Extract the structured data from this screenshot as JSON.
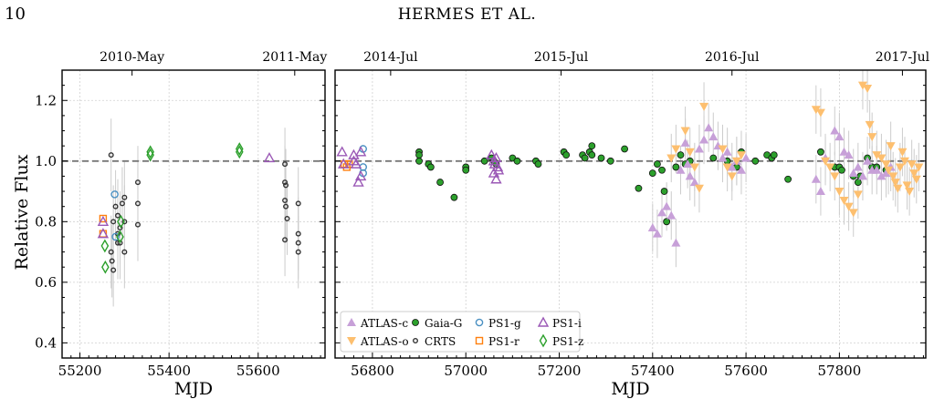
{
  "header": {
    "page_number": "10",
    "running_title": "HERMES ET AL."
  },
  "shared_ylabel": "Relative  Flux",
  "legend": [
    {
      "key": "atlas_c",
      "label": "ATLAS-c",
      "marker": "triangle-up-filled",
      "color": "#c7a0d8"
    },
    {
      "key": "atlas_o",
      "label": "ATLAS-o",
      "marker": "triangle-down-filled",
      "color": "#fdbf6f"
    },
    {
      "key": "gaia_g",
      "label": "Gaia-G",
      "marker": "circle-filled",
      "color": "#2ca02c"
    },
    {
      "key": "crts",
      "label": "CRTS",
      "marker": "circle-open",
      "color": "#333333"
    },
    {
      "key": "ps1_g",
      "label": "PS1-g",
      "marker": "circle-open",
      "color": "#4a90c2"
    },
    {
      "key": "ps1_r",
      "label": "PS1-r",
      "marker": "square-open",
      "color": "#ff7f0e"
    },
    {
      "key": "ps1_i",
      "label": "PS1-i",
      "marker": "triangle-up-open",
      "color": "#9b59b6"
    },
    {
      "key": "ps1_z",
      "label": "PS1-z",
      "marker": "diamond-open",
      "color": "#2ca02c"
    }
  ],
  "chart_data": [
    {
      "type": "scatter",
      "panel": "left",
      "xlabel": "MJD",
      "ylabel": "Relative  Flux",
      "xlim": [
        55160,
        55750
      ],
      "ylim": [
        0.35,
        1.3
      ],
      "xticks": [
        55200,
        55400,
        55600
      ],
      "yticks": [
        0.4,
        0.6,
        0.8,
        1.0,
        1.2
      ],
      "top_ticks": [
        {
          "x": 55317,
          "label": "2010-May"
        },
        {
          "x": 55682,
          "label": "2011-May"
        }
      ],
      "reference_line": 1.0,
      "grid": true,
      "series": [
        {
          "key": "crts",
          "points": [
            [
              55270,
              1.02
            ],
            [
              55275,
              0.8
            ],
            [
              55280,
              0.85
            ],
            [
              55285,
              0.82
            ],
            [
              55290,
              0.78
            ],
            [
              55295,
              0.86
            ],
            [
              55300,
              0.88
            ],
            [
              55300,
              0.8
            ],
            [
              55270,
              0.7
            ],
            [
              55272,
              0.67
            ],
            [
              55275,
              0.64
            ],
            [
              55285,
              0.76
            ],
            [
              55290,
              0.73
            ],
            [
              55330,
              0.93
            ],
            [
              55330,
              0.86
            ],
            [
              55330,
              0.79
            ],
            [
              55300,
              0.7
            ],
            [
              55285,
              0.73
            ],
            [
              55660,
              0.99
            ],
            [
              55660,
              0.93
            ],
            [
              55662,
              0.92
            ],
            [
              55660,
              0.87
            ],
            [
              55662,
              0.85
            ],
            [
              55665,
              0.81
            ],
            [
              55660,
              0.74
            ],
            [
              55690,
              0.86
            ],
            [
              55690,
              0.76
            ],
            [
              55690,
              0.73
            ],
            [
              55690,
              0.7
            ]
          ]
        },
        {
          "key": "ps1_g",
          "points": [
            [
              55278,
              0.89
            ],
            [
              55280,
              0.75
            ]
          ]
        },
        {
          "key": "ps1_r",
          "points": [
            [
              55252,
              0.81
            ],
            [
              55252,
              0.76
            ]
          ]
        },
        {
          "key": "ps1_i",
          "points": [
            [
              55252,
              0.8
            ],
            [
              55252,
              0.76
            ],
            [
              55625,
              1.01
            ]
          ]
        },
        {
          "key": "ps1_z",
          "points": [
            [
              55256,
              0.72
            ],
            [
              55257,
              0.65
            ],
            [
              55292,
              0.8
            ],
            [
              55290,
              0.75
            ],
            [
              55358,
              1.03
            ],
            [
              55358,
              1.02
            ],
            [
              55558,
              1.04
            ],
            [
              55558,
              1.03
            ]
          ]
        }
      ]
    },
    {
      "type": "scatter",
      "panel": "right",
      "xlabel": "MJD",
      "ylim": [
        0.35,
        1.3
      ],
      "xlim": [
        56720,
        57985
      ],
      "xticks": [
        56800,
        57000,
        57200,
        57400,
        57600,
        57800
      ],
      "yticks": [
        0.4,
        0.6,
        0.8,
        1.0,
        1.2
      ],
      "top_ticks": [
        {
          "x": 56839,
          "label": "2014-Jul"
        },
        {
          "x": 57204,
          "label": "2015-Jul"
        },
        {
          "x": 57570,
          "label": "2016-Jul"
        },
        {
          "x": 57935,
          "label": "2017-Jul"
        }
      ],
      "reference_line": 1.0,
      "grid": true,
      "legend_position": "lower-left",
      "series": [
        {
          "key": "gaia_g",
          "points": [
            [
              56900,
              1.03
            ],
            [
              56900,
              1.02
            ],
            [
              56900,
              1.0
            ],
            [
              56920,
              0.99
            ],
            [
              56925,
              0.98
            ],
            [
              56945,
              0.93
            ],
            [
              56975,
              0.88
            ],
            [
              57000,
              0.98
            ],
            [
              57000,
              0.97
            ],
            [
              57040,
              1.0
            ],
            [
              57055,
              1.01
            ],
            [
              57060,
              1.0
            ],
            [
              57065,
              0.99
            ],
            [
              57100,
              1.01
            ],
            [
              57110,
              1.0
            ],
            [
              57150,
              1.0
            ],
            [
              57155,
              0.99
            ],
            [
              57210,
              1.03
            ],
            [
              57215,
              1.02
            ],
            [
              57250,
              1.02
            ],
            [
              57255,
              1.01
            ],
            [
              57265,
              1.03
            ],
            [
              57270,
              1.05
            ],
            [
              57270,
              1.02
            ],
            [
              57290,
              1.01
            ],
            [
              57310,
              1.0
            ],
            [
              57340,
              1.04
            ],
            [
              57370,
              0.91
            ],
            [
              57400,
              0.96
            ],
            [
              57410,
              0.99
            ],
            [
              57420,
              0.97
            ],
            [
              57425,
              0.9
            ],
            [
              57430,
              0.8
            ],
            [
              57450,
              0.98
            ],
            [
              57460,
              1.02
            ],
            [
              57470,
              0.99
            ],
            [
              57480,
              1.0
            ],
            [
              57530,
              1.01
            ],
            [
              57560,
              1.0
            ],
            [
              57580,
              0.98
            ],
            [
              57590,
              1.03
            ],
            [
              57620,
              1.0
            ],
            [
              57645,
              1.02
            ],
            [
              57655,
              1.01
            ],
            [
              57660,
              1.02
            ],
            [
              57690,
              0.94
            ],
            [
              57760,
              1.03
            ],
            [
              57790,
              0.98
            ],
            [
              57800,
              0.98
            ],
            [
              57805,
              0.97
            ],
            [
              57830,
              0.95
            ],
            [
              57840,
              0.93
            ],
            [
              57845,
              0.95
            ],
            [
              57860,
              1.01
            ],
            [
              57870,
              0.98
            ],
            [
              57880,
              0.98
            ],
            [
              57900,
              0.97
            ]
          ]
        },
        {
          "key": "atlas_c",
          "points": [
            [
              57400,
              0.78
            ],
            [
              57410,
              0.76
            ],
            [
              57420,
              0.83
            ],
            [
              57430,
              0.85
            ],
            [
              57440,
              0.82
            ],
            [
              57450,
              0.73
            ],
            [
              57460,
              0.97
            ],
            [
              57470,
              1.06
            ],
            [
              57475,
              0.99
            ],
            [
              57480,
              0.95
            ],
            [
              57490,
              0.93
            ],
            [
              57500,
              1.04
            ],
            [
              57510,
              1.07
            ],
            [
              57520,
              1.11
            ],
            [
              57530,
              1.08
            ],
            [
              57540,
              1.05
            ],
            [
              57550,
              1.01
            ],
            [
              57560,
              1.03
            ],
            [
              57570,
              0.98
            ],
            [
              57580,
              1.0
            ],
            [
              57590,
              0.97
            ],
            [
              57600,
              1.01
            ],
            [
              57750,
              0.94
            ],
            [
              57760,
              0.9
            ],
            [
              57770,
              1.01
            ],
            [
              57790,
              1.1
            ],
            [
              57800,
              1.08
            ],
            [
              57810,
              1.03
            ],
            [
              57820,
              1.02
            ],
            [
              57830,
              0.96
            ],
            [
              57840,
              0.98
            ],
            [
              57850,
              0.95
            ],
            [
              57860,
              1.0
            ],
            [
              57870,
              0.97
            ],
            [
              57880,
              0.97
            ],
            [
              57890,
              0.95
            ],
            [
              57900,
              0.96
            ],
            [
              57910,
              0.98
            ]
          ]
        },
        {
          "key": "atlas_o",
          "points": [
            [
              57440,
              1.01
            ],
            [
              57450,
              1.04
            ],
            [
              57470,
              1.1
            ],
            [
              57480,
              1.03
            ],
            [
              57490,
              0.98
            ],
            [
              57500,
              0.91
            ],
            [
              57510,
              1.18
            ],
            [
              57550,
              1.04
            ],
            [
              57560,
              0.98
            ],
            [
              57570,
              0.95
            ],
            [
              57580,
              1.0
            ],
            [
              57590,
              1.02
            ],
            [
              57750,
              1.17
            ],
            [
              57760,
              1.16
            ],
            [
              57770,
              1.0
            ],
            [
              57780,
              0.98
            ],
            [
              57790,
              0.95
            ],
            [
              57800,
              0.9
            ],
            [
              57810,
              0.87
            ],
            [
              57820,
              0.85
            ],
            [
              57830,
              0.83
            ],
            [
              57840,
              0.89
            ],
            [
              57850,
              1.25
            ],
            [
              57860,
              1.24
            ],
            [
              57865,
              1.12
            ],
            [
              57870,
              1.08
            ],
            [
              57880,
              1.02
            ],
            [
              57890,
              1.01
            ],
            [
              57900,
              0.99
            ],
            [
              57905,
              0.97
            ],
            [
              57910,
              1.05
            ],
            [
              57915,
              0.95
            ],
            [
              57920,
              0.93
            ],
            [
              57925,
              0.91
            ],
            [
              57930,
              0.98
            ],
            [
              57935,
              1.03
            ],
            [
              57940,
              1.0
            ],
            [
              57945,
              0.92
            ],
            [
              57950,
              0.9
            ],
            [
              57955,
              0.99
            ],
            [
              57960,
              0.96
            ],
            [
              57965,
              0.94
            ],
            [
              57970,
              0.98
            ]
          ]
        },
        {
          "key": "ps1_g",
          "points": [
            [
              56780,
              1.04
            ],
            [
              56780,
              0.96
            ],
            [
              56780,
              0.98
            ]
          ]
        },
        {
          "key": "ps1_r",
          "points": [
            [
              56740,
              0.99
            ],
            [
              56745,
              0.98
            ],
            [
              56750,
              0.99
            ]
          ]
        },
        {
          "key": "ps1_i",
          "points": [
            [
              56735,
              1.03
            ],
            [
              56738,
              0.99
            ],
            [
              56760,
              1.0
            ],
            [
              56760,
              1.02
            ],
            [
              56765,
              0.99
            ],
            [
              56770,
              0.93
            ],
            [
              56775,
              0.95
            ],
            [
              56775,
              1.03
            ],
            [
              57055,
              1.02
            ],
            [
              57060,
              1.0
            ],
            [
              57060,
              0.96
            ],
            [
              57062,
              0.99
            ],
            [
              57065,
              0.94
            ],
            [
              57065,
              1.01
            ],
            [
              57068,
              0.98
            ],
            [
              57070,
              0.97
            ]
          ]
        }
      ]
    }
  ]
}
